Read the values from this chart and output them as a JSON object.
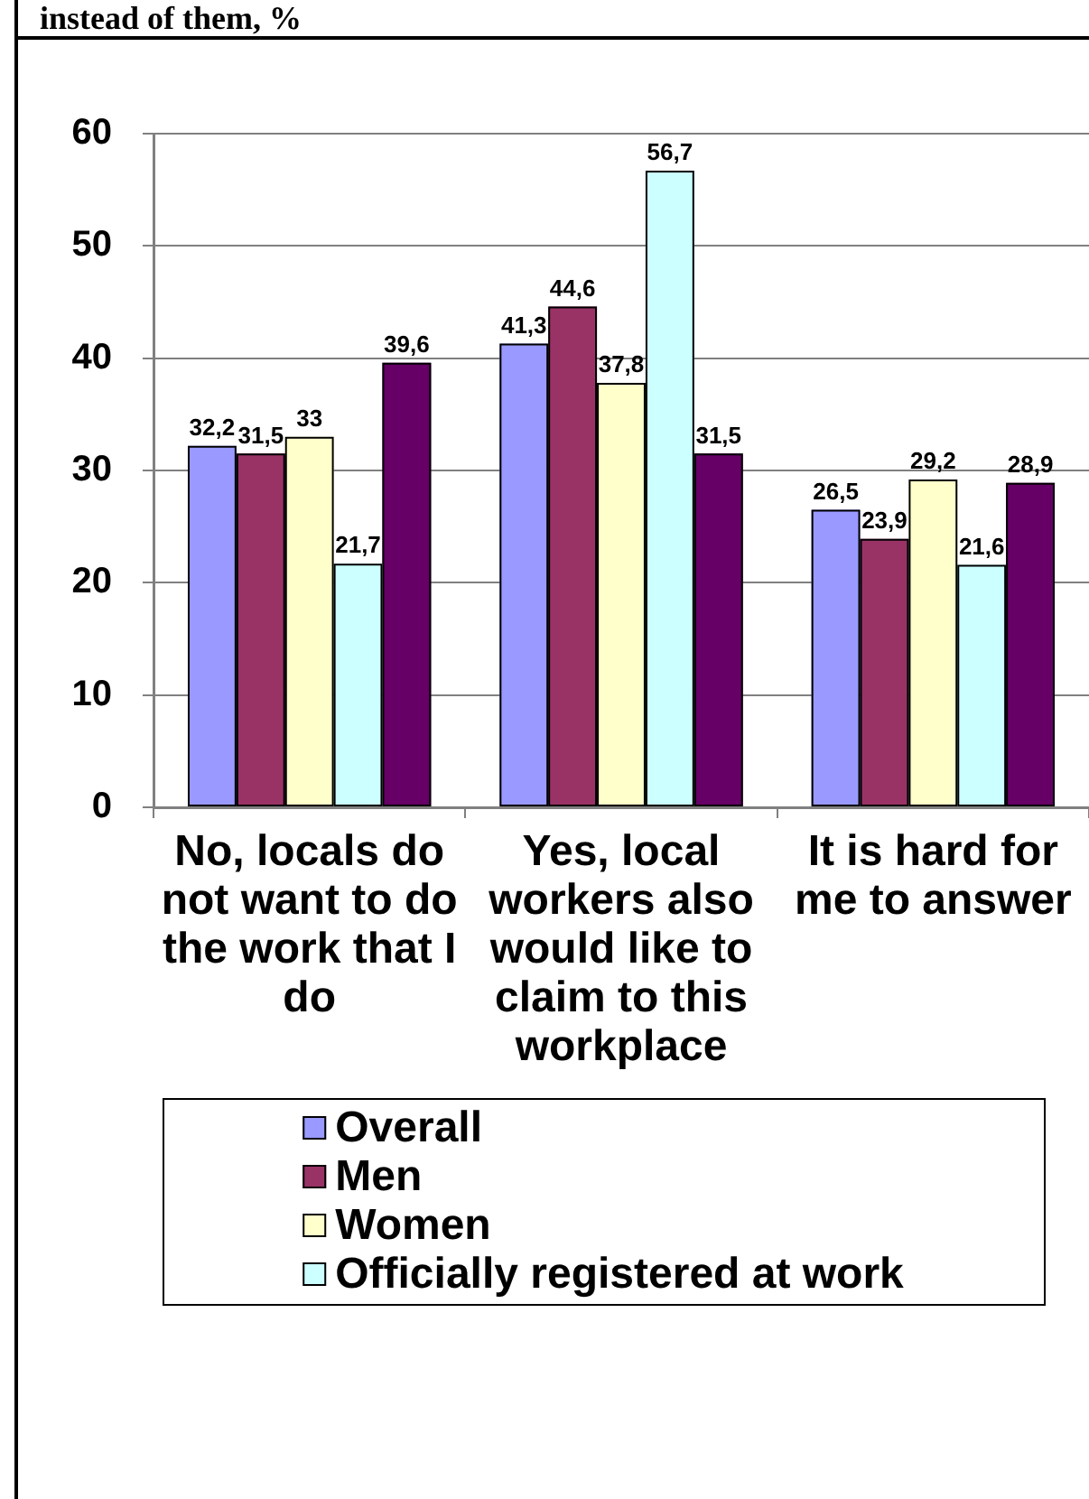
{
  "chart_data": {
    "type": "bar",
    "title": "instead of them, %",
    "categories": [
      "No, locals do not want to do the work that I do",
      "Yes, local workers also would like to claim to this workplace",
      "It is hard for me to answer"
    ],
    "series": [
      {
        "name": "Overall",
        "color": "#9999ff",
        "values": [
          32.2,
          41.3,
          26.5
        ],
        "value_labels": [
          "32,2",
          "41,3",
          "26,5"
        ]
      },
      {
        "name": "Men",
        "color": "#993366",
        "values": [
          31.5,
          44.6,
          23.9
        ],
        "value_labels": [
          "31,5",
          "44,6",
          "23,9"
        ]
      },
      {
        "name": "Women",
        "color": "#ffffcc",
        "values": [
          33,
          37.8,
          29.2
        ],
        "value_labels": [
          "33",
          "37,8",
          "29,2"
        ]
      },
      {
        "name": "Officially registered at work",
        "color": "#ccffff",
        "values": [
          21.7,
          56.7,
          21.6
        ],
        "value_labels": [
          "21,7",
          "56,7",
          "21,6"
        ]
      },
      {
        "color": "#660066",
        "values": [
          39.6,
          31.5,
          28.9
        ],
        "value_labels": [
          "39,6",
          "31,5",
          "28,9"
        ]
      }
    ],
    "ylim": [
      0,
      60
    ],
    "yticks": [
      0,
      10,
      20,
      30,
      40,
      50,
      60
    ],
    "grid": "y",
    "legend": "bottom"
  }
}
